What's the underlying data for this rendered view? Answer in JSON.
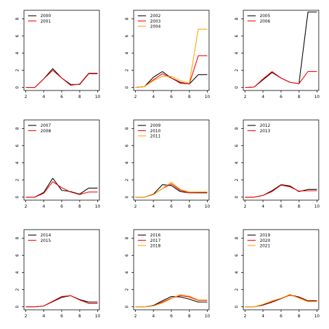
{
  "chart_data": [
    {
      "type": "line",
      "x": [
        2,
        3,
        4,
        5,
        6,
        7,
        8,
        9,
        10
      ],
      "xlim": [
        1.8,
        10.2
      ],
      "ylim": [
        -0.35,
        9.0
      ],
      "xticks": [
        "2",
        "4",
        "6",
        "8",
        "10"
      ],
      "yticks": [
        "0",
        "2",
        "4",
        "6",
        "8"
      ],
      "legend_position": "top-left",
      "series": [
        {
          "name": "2000",
          "color": "#000000",
          "values": [
            0,
            0,
            1.0,
            2.2,
            1.1,
            0.35,
            0.35,
            1.6,
            1.6
          ]
        },
        {
          "name": "2001",
          "color": "#ff0000",
          "values": [
            0,
            0,
            1.0,
            2.0,
            1.1,
            0.25,
            0.4,
            1.65,
            1.65
          ]
        }
      ]
    },
    {
      "type": "line",
      "x": [
        2,
        3,
        4,
        5,
        6,
        7,
        8,
        9,
        10
      ],
      "xlim": [
        1.8,
        10.2
      ],
      "ylim": [
        -0.35,
        9.0
      ],
      "xticks": [
        "2",
        "4",
        "6",
        "8",
        "10"
      ],
      "yticks": [
        "0",
        "2",
        "4",
        "6",
        "8"
      ],
      "legend_position": "top-left",
      "series": [
        {
          "name": "2002",
          "color": "#000000",
          "values": [
            0,
            0.1,
            1.2,
            1.85,
            1.1,
            0.6,
            0.4,
            1.5,
            1.5
          ]
        },
        {
          "name": "2003",
          "color": "#ff0000",
          "values": [
            0,
            0.1,
            0.9,
            1.6,
            1.1,
            0.5,
            0.4,
            3.7,
            3.7
          ]
        },
        {
          "name": "2004",
          "color": "#ffa500",
          "values": [
            0,
            0.1,
            0.8,
            1.3,
            1.3,
            0.8,
            0.5,
            6.8,
            6.8
          ]
        }
      ]
    },
    {
      "type": "line",
      "x": [
        2,
        3,
        4,
        5,
        6,
        7,
        8,
        9,
        10
      ],
      "xlim": [
        1.8,
        10.2
      ],
      "ylim": [
        -0.35,
        9.0
      ],
      "xticks": [
        "2",
        "4",
        "6",
        "8",
        "10"
      ],
      "yticks": [
        "0",
        "2",
        "4",
        "6",
        "8"
      ],
      "legend_position": "top-left",
      "series": [
        {
          "name": "2005",
          "color": "#000000",
          "values": [
            0,
            0.05,
            0.9,
            1.75,
            1.1,
            0.6,
            0.45,
            8.8,
            8.8
          ]
        },
        {
          "name": "2006",
          "color": "#ff0000",
          "values": [
            0,
            0.05,
            1.0,
            1.85,
            1.1,
            0.6,
            0.45,
            1.85,
            1.85
          ]
        }
      ]
    },
    {
      "type": "line",
      "x": [
        2,
        3,
        4,
        5,
        6,
        7,
        8,
        9,
        10
      ],
      "xlim": [
        1.8,
        10.2
      ],
      "ylim": [
        -0.35,
        9.0
      ],
      "xticks": [
        "2",
        "4",
        "6",
        "8",
        "10"
      ],
      "yticks": [
        "0",
        "2",
        "4",
        "6",
        "8"
      ],
      "legend_position": "top-left",
      "series": [
        {
          "name": "2007",
          "color": "#000000",
          "values": [
            0,
            0,
            0.55,
            2.2,
            0.8,
            0.65,
            0.35,
            1.05,
            1.05
          ]
        },
        {
          "name": "2008",
          "color": "#ff0000",
          "values": [
            0,
            0,
            0.45,
            1.8,
            1.1,
            0.6,
            0.3,
            0.6,
            0.6
          ]
        }
      ]
    },
    {
      "type": "line",
      "x": [
        2,
        3,
        4,
        5,
        6,
        7,
        8,
        9,
        10
      ],
      "xlim": [
        1.8,
        10.2
      ],
      "ylim": [
        -0.35,
        9.0
      ],
      "xticks": [
        "2",
        "4",
        "6",
        "8",
        "10"
      ],
      "yticks": [
        "0",
        "2",
        "4",
        "6",
        "8"
      ],
      "legend_position": "top-left",
      "series": [
        {
          "name": "2009",
          "color": "#000000",
          "values": [
            0,
            0,
            0.35,
            1.45,
            1.35,
            0.65,
            0.5,
            0.5,
            0.5
          ]
        },
        {
          "name": "2010",
          "color": "#ff0000",
          "values": [
            0,
            0,
            0.3,
            1.0,
            1.55,
            0.8,
            0.5,
            0.55,
            0.55
          ]
        },
        {
          "name": "2011",
          "color": "#ffa500",
          "values": [
            0,
            0,
            0.3,
            1.0,
            1.75,
            0.9,
            0.6,
            0.6,
            0.6
          ]
        }
      ]
    },
    {
      "type": "line",
      "x": [
        2,
        3,
        4,
        5,
        6,
        7,
        8,
        9,
        10
      ],
      "xlim": [
        1.8,
        10.2
      ],
      "ylim": [
        -0.35,
        9.0
      ],
      "xticks": [
        "2",
        "4",
        "6",
        "8",
        "10"
      ],
      "yticks": [
        "0",
        "2",
        "4",
        "6",
        "8"
      ],
      "legend_position": "top-left",
      "series": [
        {
          "name": "2012",
          "color": "#000000",
          "values": [
            0,
            0,
            0.2,
            0.75,
            1.45,
            1.3,
            0.65,
            0.9,
            0.9
          ]
        },
        {
          "name": "2013",
          "color": "#ff0000",
          "values": [
            0,
            0,
            0.2,
            0.65,
            1.4,
            1.2,
            0.7,
            0.75,
            0.75
          ]
        }
      ]
    },
    {
      "type": "line",
      "x": [
        2,
        3,
        4,
        5,
        6,
        7,
        8,
        9,
        10
      ],
      "xlim": [
        1.8,
        10.2
      ],
      "ylim": [
        -0.35,
        9.0
      ],
      "xticks": [
        "2",
        "4",
        "6",
        "8",
        "10"
      ],
      "yticks": [
        "0",
        "2",
        "4",
        "6",
        "8"
      ],
      "legend_position": "top-left",
      "series": [
        {
          "name": "2014",
          "color": "#000000",
          "values": [
            0,
            0,
            0.1,
            0.6,
            1.1,
            1.3,
            0.85,
            0.55,
            0.55
          ]
        },
        {
          "name": "2015",
          "color": "#ff0000",
          "values": [
            0,
            0,
            0.1,
            0.65,
            1.2,
            1.3,
            0.8,
            0.4,
            0.4
          ]
        }
      ]
    },
    {
      "type": "line",
      "x": [
        2,
        3,
        4,
        5,
        6,
        7,
        8,
        9,
        10
      ],
      "xlim": [
        1.8,
        10.2
      ],
      "ylim": [
        -0.35,
        9.0
      ],
      "xticks": [
        "2",
        "4",
        "6",
        "8",
        "10"
      ],
      "yticks": [
        "0",
        "2",
        "4",
        "6",
        "8"
      ],
      "legend_position": "top-left",
      "series": [
        {
          "name": "2016",
          "color": "#000000",
          "values": [
            0,
            0,
            0.15,
            0.7,
            1.2,
            1.15,
            0.9,
            0.55,
            0.55
          ]
        },
        {
          "name": "2017",
          "color": "#ff0000",
          "values": [
            0,
            0,
            0.1,
            0.55,
            1.0,
            1.3,
            1.15,
            0.75,
            0.75
          ]
        },
        {
          "name": "2018",
          "color": "#ffa500",
          "values": [
            0,
            0,
            0.1,
            0.45,
            0.95,
            1.45,
            1.25,
            0.8,
            0.8
          ]
        }
      ]
    },
    {
      "type": "line",
      "x": [
        2,
        3,
        4,
        5,
        6,
        7,
        8,
        9,
        10
      ],
      "xlim": [
        1.8,
        10.2
      ],
      "ylim": [
        -0.35,
        9.0
      ],
      "xticks": [
        "2",
        "4",
        "6",
        "8",
        "10"
      ],
      "yticks": [
        "0",
        "2",
        "4",
        "6",
        "8"
      ],
      "legend_position": "top-left",
      "series": [
        {
          "name": "2019",
          "color": "#000000",
          "values": [
            0,
            0,
            0.2,
            0.55,
            0.95,
            1.4,
            1.15,
            0.7,
            0.7
          ]
        },
        {
          "name": "2020",
          "color": "#ff0000",
          "values": [
            0,
            0,
            0.25,
            0.6,
            1.0,
            1.35,
            1.1,
            0.65,
            0.65
          ]
        },
        {
          "name": "2021",
          "color": "#ffa500",
          "values": [
            0,
            0,
            0.3,
            0.7,
            1.0,
            1.45,
            1.0,
            0.6,
            0.6
          ]
        }
      ]
    }
  ]
}
